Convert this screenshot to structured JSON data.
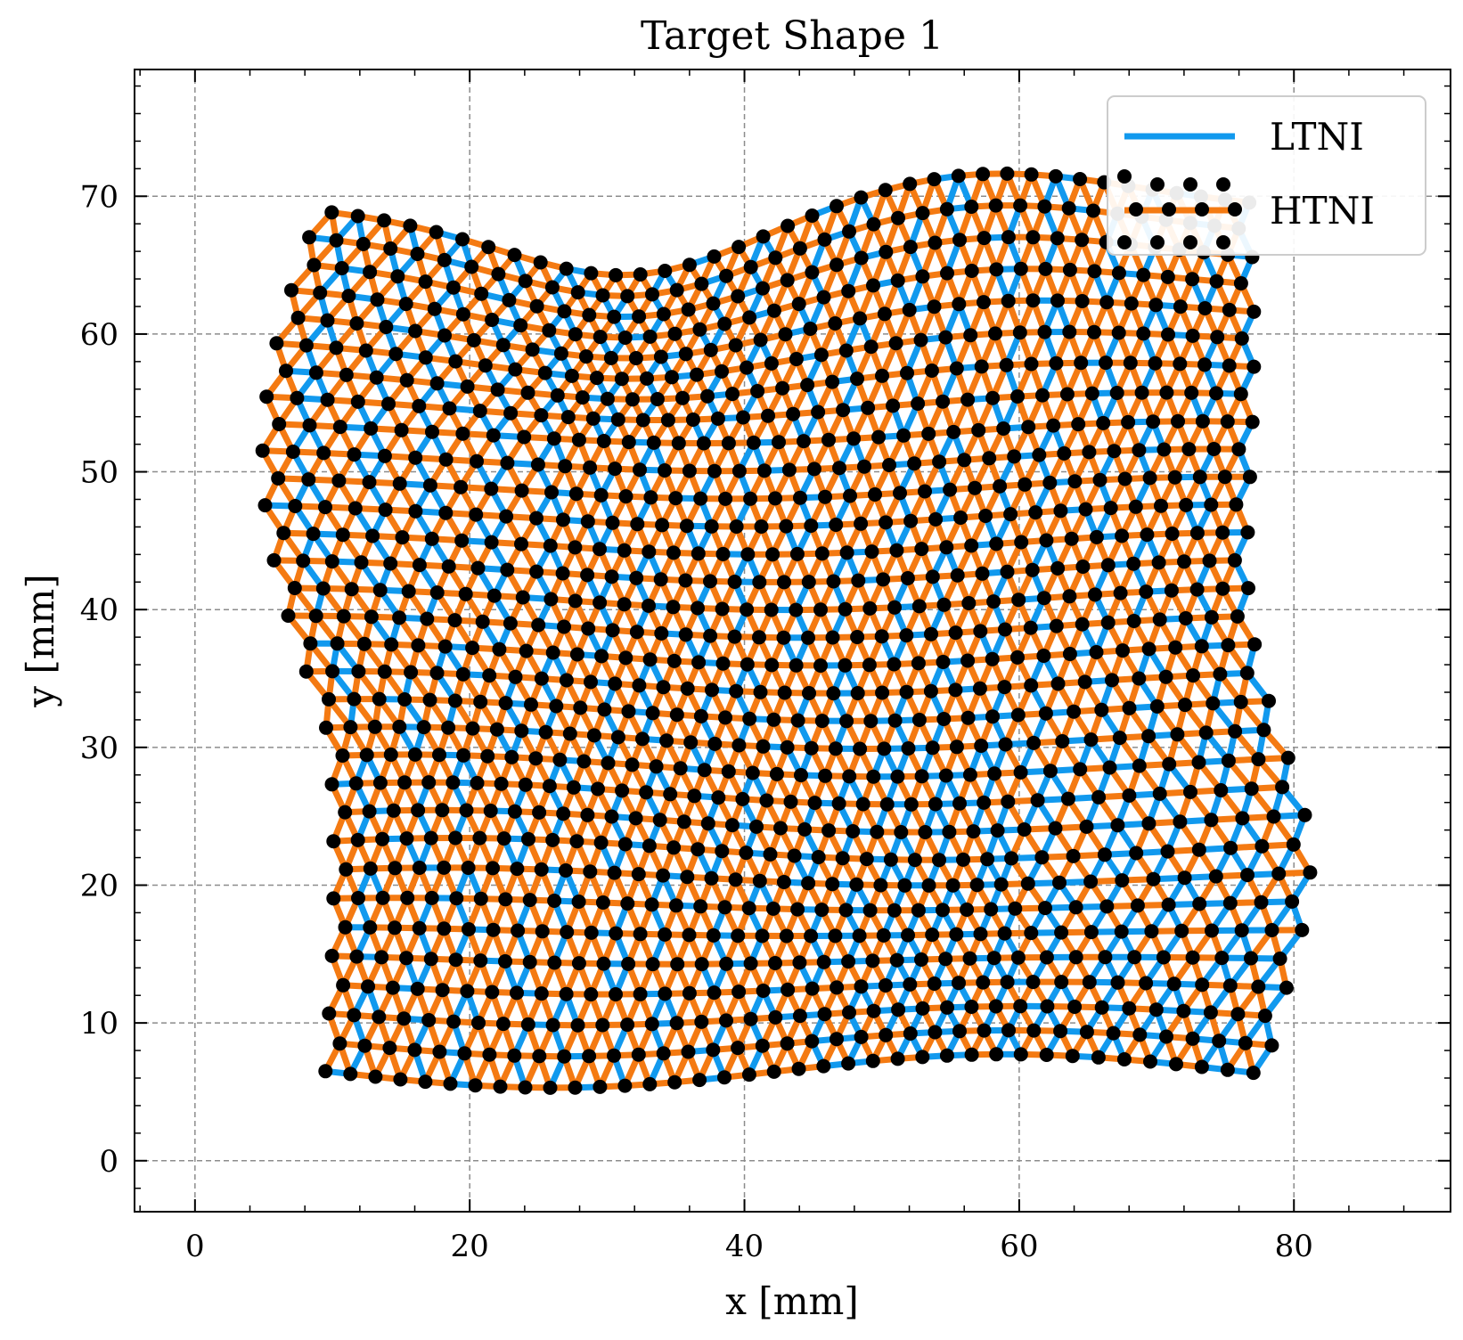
{
  "chart_data": {
    "type": "line",
    "title": "Target Shape 1",
    "xlabel": "x [mm]",
    "ylabel": "y [mm]",
    "xlim": [
      -4.4,
      91.4
    ],
    "ylim": [
      -3.7,
      79.2
    ],
    "xticks": [
      0,
      20,
      40,
      60,
      80
    ],
    "yticks": [
      0,
      10,
      20,
      30,
      40,
      50,
      60,
      70
    ],
    "grid": true,
    "legend": "top-right",
    "lattice": {
      "rows": 32,
      "cols": 38,
      "x_start": 9.5,
      "x_end": 76.5,
      "y_start": 6.5,
      "y_end": 69.0
    },
    "series": [
      {
        "name": "LTNI",
        "color": "#1199EE",
        "style": "solid"
      },
      {
        "name": "HTNI",
        "color": "#F47A12",
        "style": "solid"
      }
    ],
    "nodes_color": "#000000"
  }
}
